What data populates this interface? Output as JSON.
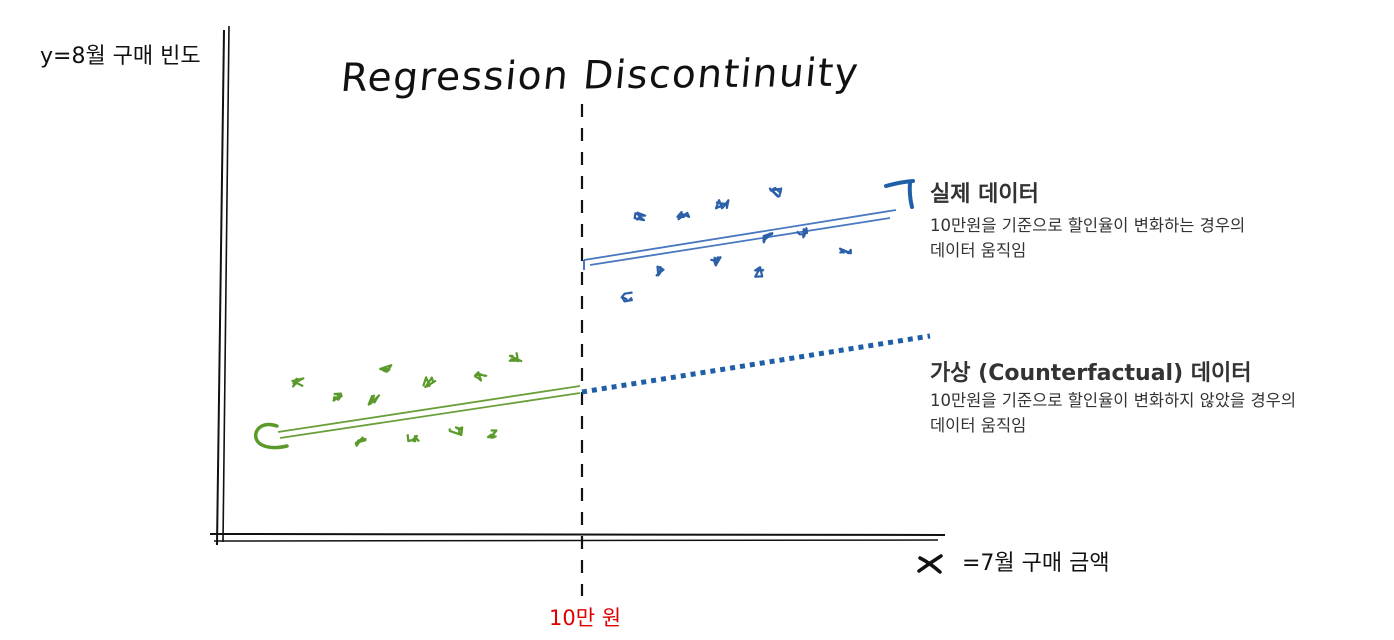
{
  "diagram": {
    "title": "Regression Discontinuity",
    "y_axis_label": "y=8월 구매 빈도",
    "x_axis_symbol": "x",
    "x_axis_label": "=7월 구매 금액",
    "cutoff_label": "10만 원",
    "legend": {
      "actual": {
        "marker_letter": "T",
        "title": "실제 데이터",
        "desc_line1": "10만원을 기준으로 할인율이 변화하는 경우의",
        "desc_line2": "데이터 움직임"
      },
      "counterfactual": {
        "marker_letter": "C",
        "title": "가상 (Counterfactual) 데이터",
        "desc_line1": "10만원을 기준으로 할인율이 변화하지 않았을 경우의",
        "desc_line2": "데이터 움직임"
      }
    },
    "colors": {
      "axis": "#111111",
      "cutoff_line": "#111111",
      "cutoff_label": "#e00000",
      "treated": "#2b5fa8",
      "treated_line": "#4a78c0",
      "control": "#5b9a2a",
      "control_line": "#6aa03a",
      "counterfactual": "#1f5fa8"
    }
  }
}
